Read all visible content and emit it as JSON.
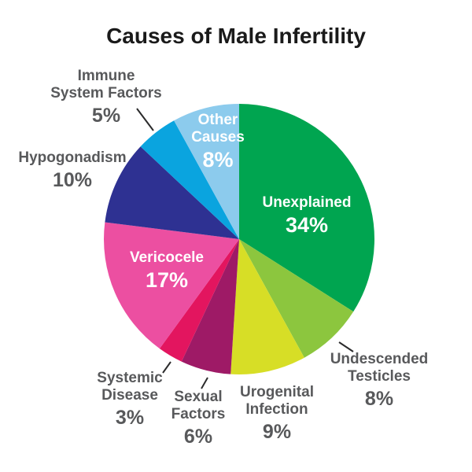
{
  "chart_data": {
    "type": "pie",
    "title": "Causes of Male Infertility",
    "start_angle_deg": 0,
    "direction": "clockwise",
    "total": 100,
    "slices": [
      {
        "label": "Unexplained",
        "label_display": "Unexplained",
        "value": 34,
        "pct": "34%",
        "color": "#00A550",
        "label_placement": "inside"
      },
      {
        "label": "Undescended Testicles",
        "label_display": "Undescended\nTesticles",
        "value": 8,
        "pct": "8%",
        "color": "#8CC63E",
        "label_placement": "outside"
      },
      {
        "label": "Urogenital Infection",
        "label_display": "Urogenital\nInfection",
        "value": 9,
        "pct": "9%",
        "color": "#D7DE26",
        "label_placement": "outside"
      },
      {
        "label": "Sexual Factors",
        "label_display": "Sexual\nFactors",
        "value": 6,
        "pct": "6%",
        "color": "#9E1A66",
        "label_placement": "outside"
      },
      {
        "label": "Systemic Disease",
        "label_display": "Systemic\nDisease",
        "value": 3,
        "pct": "3%",
        "color": "#E3155F",
        "label_placement": "outside"
      },
      {
        "label": "Vericocele",
        "label_display": "Vericocele",
        "value": 17,
        "pct": "17%",
        "color": "#EC4FA1",
        "label_placement": "inside"
      },
      {
        "label": "Hypogonadism",
        "label_display": "Hypogonadism",
        "value": 10,
        "pct": "10%",
        "color": "#2E3192",
        "label_placement": "outside"
      },
      {
        "label": "Immune System Factors",
        "label_display": "Immune\nSystem Factors",
        "value": 5,
        "pct": "5%",
        "color": "#0AA4DF",
        "label_placement": "outside"
      },
      {
        "label": "Other Causes",
        "label_display": "Other\nCauses",
        "value": 8,
        "pct": "8%",
        "color": "#8CCBED",
        "label_placement": "inside"
      }
    ],
    "colors": {
      "outside_label_text": "#58595B",
      "inside_label_text": "#FFFFFF",
      "title_text": "#1A1A1A",
      "leader_line": "#2B2B2C",
      "background": "#FFFFFF"
    },
    "legend": "none"
  }
}
